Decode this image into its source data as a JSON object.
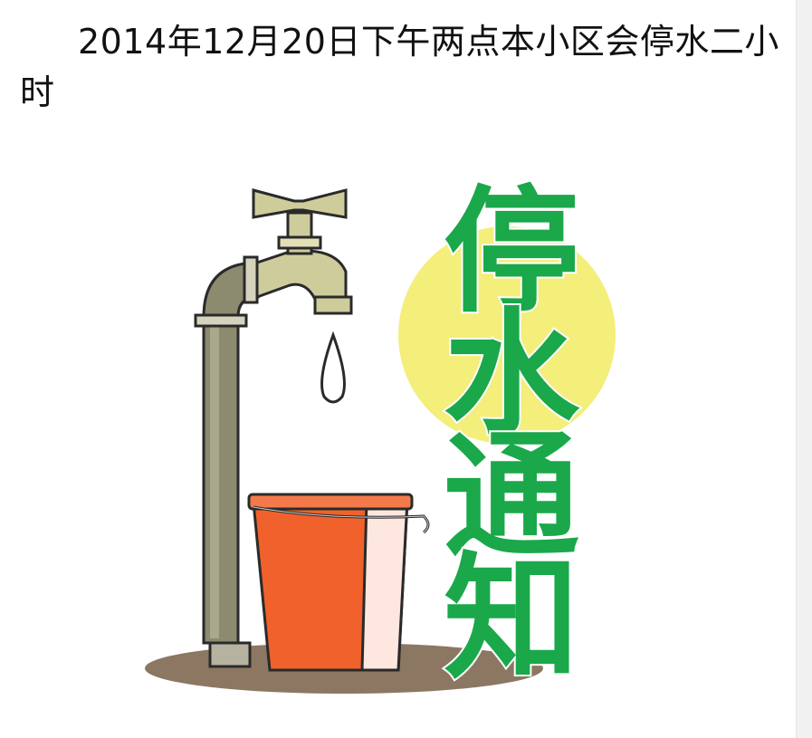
{
  "notice": {
    "text": "2014年12月20日下午两点本小区会停水二小时"
  },
  "poster": {
    "title_chars": [
      "停",
      "水",
      "通",
      "知"
    ],
    "colors": {
      "title_green": "#1aa84a",
      "sun_yellow": "#f4ee7a",
      "bucket_orange": "#f0612b",
      "pipe_gray": "#8c8a6f",
      "shadow_brown": "#8c7763"
    }
  },
  "icons": [
    "faucet-icon",
    "water-drop-icon",
    "bucket-icon",
    "sun-icon"
  ]
}
